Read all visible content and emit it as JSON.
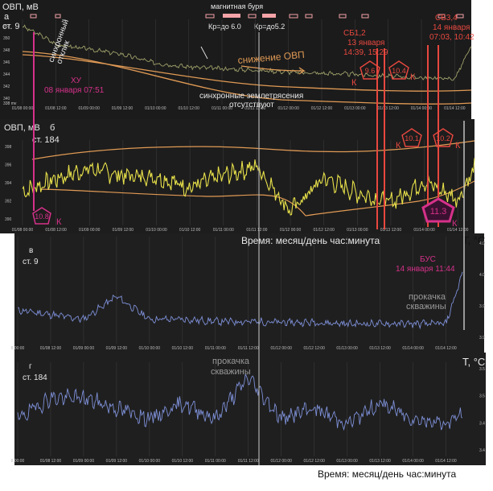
{
  "x_ticks": [
    "01/08 00:00",
    "01/08 12:00",
    "01/09 00:00",
    "01/09 12:00",
    "01/10 00:00",
    "01/10 12:00",
    "01/11 00:00",
    "01/11 12:00",
    "01/12 00:00",
    "01/12 12:00",
    "01/13 00:00",
    "01/13 12:00",
    "01/14 00:00",
    "01/14 12:00"
  ],
  "x_ticks_c": [
    "8 00:00",
    "01/08 12:00",
    "01/09 00:00",
    "01/09 12:00",
    "01/10 00:00",
    "01/10 12:00",
    "01/11 00:00",
    "01/11 12:00",
    "01/12 00:00",
    "01/12 12:00",
    "01/13 00:00",
    "01/13 12:00",
    "01/14 00:00",
    "01/14 12:00"
  ],
  "x_ticks_d": [
    "8 00:00",
    "01/08 12:00",
    "01/09 00:00",
    "01/09 12:00",
    "01/10 00:00",
    "01/10 12:00",
    "01/11 00:00",
    "01/11 12:00",
    "01/12 00:00",
    "01/12 12:00",
    "01/13 00:00",
    "01/13 12:00",
    "01/14 00:00",
    "01/14 12:00"
  ],
  "panel_a": {
    "ylabel": "ОВП, мВ",
    "letter": "а",
    "station": "ст. 9",
    "y_ticks": [
      "352",
      "350",
      "348",
      "346",
      "344",
      "342",
      "340"
    ],
    "y_unit": "338 mv"
  },
  "panel_b": {
    "ylabel": "ОВП, мВ",
    "letter": "б",
    "station": "ст. 184",
    "y_ticks": [
      "398",
      "396",
      "394",
      "392",
      "390"
    ]
  },
  "panel_c": {
    "ylabel": "T, °C",
    "letter": "в",
    "station": "ст. 9",
    "y_ticks": [
      "4.0",
      "4.0",
      "3.9",
      "3.9"
    ]
  },
  "panel_d": {
    "ylabel": "T, °C",
    "letter": "г",
    "station": "ст. 184",
    "y_ticks": [
      "3.5",
      "3.5",
      "3.4",
      "3.4"
    ]
  },
  "annotations": {
    "magnetic_storm": "магнитная буря",
    "kp1": "Кр=до 6.0",
    "kp2": "Кр=до5.2",
    "sync_response": [
      "синхронный",
      "отклик"
    ],
    "ovp_decrease": "снижение ОВП",
    "no_sync_quakes": [
      "синхронные землетрясения",
      "отсутствуют"
    ],
    "xu": [
      "ХУ",
      "08 января 07:51"
    ],
    "sb12": [
      "СБ1,2",
      "13 января",
      "14:39, 15:29"
    ],
    "sb34": [
      "СБ3,4",
      "14 января",
      "07:03, 10:42"
    ],
    "bus": [
      "БУС",
      "14 января 11:44"
    ],
    "pumping_c": [
      "прокачка",
      "скважины"
    ],
    "pumping_d": [
      "прокачка",
      "скважины"
    ],
    "time_axis_1": "Время: месяц/день час:минута",
    "time_axis_2": "Время: месяц/день час:минута",
    "k": "К"
  },
  "badges": {
    "b1": "10.8",
    "b2": "9.6",
    "b3": "10.4",
    "b4": "10.1",
    "b5": "10.2",
    "b6": "11.3"
  },
  "colors": {
    "bg": "#1b1b1b",
    "ovp_a": "#9fa06a",
    "ovp_b": "#e7e04a",
    "temp": "#7d8fd6",
    "envelope": "#e09a55",
    "event": "#e8483f",
    "magenta": "#d6318a",
    "pink": "#f4a3a8"
  },
  "chart_data": [
    {
      "type": "line",
      "panel": "а",
      "x": [
        "01/08 00:00",
        "01/08 07:51",
        "01/08 12:00",
        "01/09 00:00",
        "01/09 12:00",
        "01/10 00:00",
        "01/10 12:00",
        "01/11 00:00",
        "01/11 12:00",
        "01/12 00:00",
        "01/12 12:00",
        "01/13 00:00",
        "01/13 12:00",
        "01/14 00:00",
        "01/14 12:00",
        "01/14 18:00"
      ],
      "series": [
        {
          "values": [
            353.5,
            351.2,
            349.6,
            348.6,
            347.5,
            345.6,
            344.8,
            344.4,
            344.1,
            343.7,
            343.4,
            343.2,
            342.8,
            342.5,
            342.2,
            349.2
          ]
        }
      ],
      "ylim": [
        337,
        354
      ]
    },
    {
      "type": "line",
      "panel": "б",
      "x": [
        "01/08 00:00",
        "01/08 12:00",
        "01/09 00:00",
        "01/09 12:00",
        "01/10 00:00",
        "01/10 12:00",
        "01/11 00:00",
        "01/11 12:00",
        "01/12 00:00",
        "01/12 12:00",
        "01/13 00:00",
        "01/13 12:00",
        "01/14 00:00",
        "01/14 12:00",
        "01/14 18:00"
      ],
      "series": [
        {
          "values": [
            393.5,
            395.2,
            396.5,
            395.6,
            395.5,
            394.1,
            395.6,
            396.8,
            391.1,
            395.3,
            393.4,
            392.2,
            394.9,
            392.6,
            396.5
          ]
        }
      ],
      "ylim": [
        389.5,
        399.5
      ]
    },
    {
      "type": "line",
      "panel": "в",
      "x": [
        "01/08 00:00",
        "01/08 12:00",
        "01/09 00:00",
        "01/09 12:00",
        "01/10 00:00",
        "01/10 12:00",
        "01/11 00:00",
        "01/11 12:00",
        "01/12 00:00",
        "01/12 12:00",
        "01/13 00:00",
        "01/13 12:00",
        "01/14 00:00",
        "01/14 12:00",
        "01/14 18:00"
      ],
      "series": [
        {
          "values": [
            3.92,
            3.91,
            3.9,
            3.95,
            3.9,
            3.9,
            3.895,
            3.895,
            3.893,
            3.893,
            3.89,
            3.89,
            3.89,
            3.89,
            4.0
          ]
        }
      ],
      "ylim": [
        3.85,
        4.07
      ]
    },
    {
      "type": "line",
      "panel": "г",
      "x": [
        "01/08 00:00",
        "01/08 12:00",
        "01/09 00:00",
        "01/09 12:00",
        "01/10 00:00",
        "01/10 12:00",
        "01/11 00:00",
        "01/11 12:00",
        "01/12 00:00",
        "01/12 12:00",
        "01/13 00:00",
        "01/13 12:00",
        "01/14 00:00",
        "01/14 12:00",
        "01/14 18:00"
      ],
      "series": [
        {
          "values": [
            3.43,
            3.47,
            3.47,
            3.45,
            3.43,
            3.46,
            3.43,
            3.51,
            3.43,
            3.45,
            3.42,
            3.46,
            3.43,
            3.42,
            3.44
          ]
        }
      ],
      "ylim": [
        3.36,
        3.53
      ]
    }
  ]
}
